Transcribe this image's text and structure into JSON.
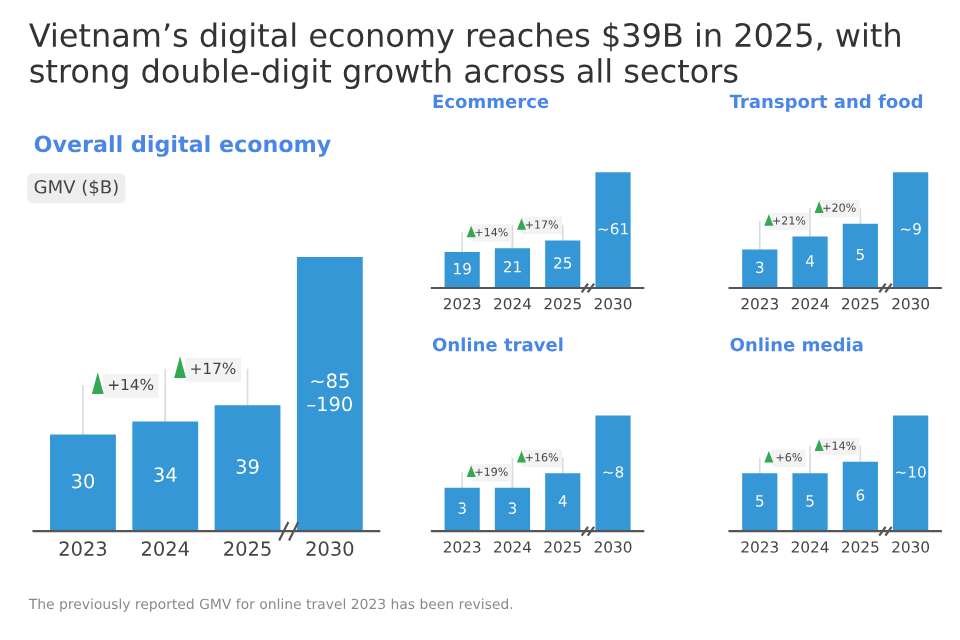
{
  "chart_data": [
    {
      "type": "other",
      "title": "Vietnam’s digital economy reaches $39B in 2025, with strong double-digit growth across all sectors",
      "annotations": [
        "The previously reported GMV for online travel 2023 has been revised."
      ]
    },
    {
      "type": "bar",
      "title": "Overall digital economy",
      "subtitle": "GMV ($B)",
      "tick_labels": "x",
      "color": "#3597d6",
      "categories": [
        "2023",
        "2024",
        "2025",
        "2030"
      ],
      "values": [
        30,
        34,
        39,
        85
      ],
      "value_labels": [
        "30",
        "34",
        "39",
        "~85–190"
      ],
      "annotations": [
        "+14%",
        "+17%"
      ]
    },
    {
      "type": "bar",
      "title": "Ecommerce",
      "tick_labels": "x",
      "color": "#3597d6",
      "categories": [
        "2023",
        "2024",
        "2025",
        "2030"
      ],
      "values": [
        19,
        21,
        25,
        61
      ],
      "value_labels": [
        "19",
        "21",
        "25",
        "~61"
      ],
      "annotations": [
        "+14%",
        "+17%"
      ]
    },
    {
      "type": "bar",
      "title": "Transport and food",
      "tick_labels": "x",
      "color": "#3597d6",
      "categories": [
        "2023",
        "2024",
        "2025",
        "2030"
      ],
      "values": [
        3,
        4,
        5,
        9
      ],
      "value_labels": [
        "3",
        "4",
        "5",
        "~9"
      ],
      "annotations": [
        "+21%",
        "+20%"
      ]
    },
    {
      "type": "bar",
      "title": "Online travel",
      "tick_labels": "x",
      "color": "#3597d6",
      "categories": [
        "2023",
        "2024",
        "2025",
        "2030"
      ],
      "values": [
        3,
        3,
        4,
        8
      ],
      "value_labels": [
        "3",
        "3",
        "4",
        "~8"
      ],
      "annotations": [
        "+19%",
        "+16%"
      ]
    },
    {
      "type": "bar",
      "title": "Online media",
      "tick_labels": "x",
      "color": "#3597d6",
      "categories": [
        "2023",
        "2024",
        "2025",
        "2030"
      ],
      "values": [
        5,
        5,
        6,
        10
      ],
      "value_labels": [
        "5",
        "5",
        "6",
        "~10"
      ],
      "annotations": [
        "+6%",
        "+14%"
      ]
    }
  ]
}
